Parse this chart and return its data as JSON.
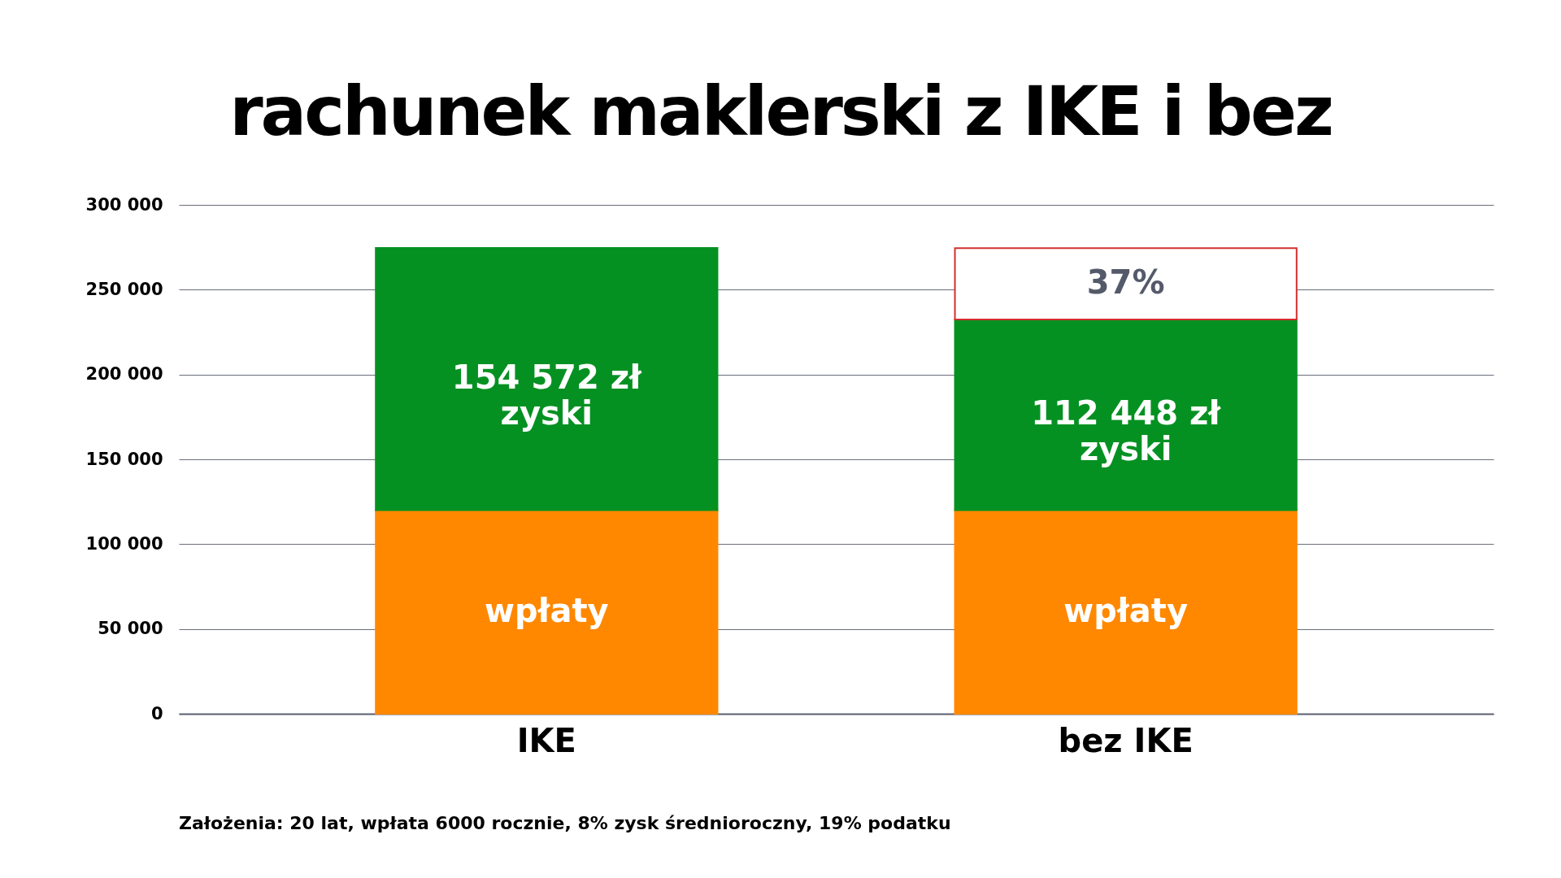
{
  "chart_data": {
    "type": "bar",
    "title": "rachunek maklerski z IKE i bez",
    "categories": [
      "IKE",
      "bez IKE"
    ],
    "stacked": true,
    "series": [
      {
        "name": "wpłaty",
        "color": "#ff8800",
        "values": [
          120000,
          120000
        ]
      },
      {
        "name": "zyski",
        "color": "#059122",
        "values": [
          154572,
          112448
        ],
        "value_labels": [
          "154 572 zł",
          "112 448 zł"
        ]
      },
      {
        "color": "#ffffff",
        "values": [
          null,
          42000
        ]
      }
    ],
    "ylim": [
      0,
      300000
    ],
    "yticks": [
      {
        "value": 0,
        "label": "0"
      },
      {
        "value": 50000,
        "label": "50 000"
      },
      {
        "value": 100000,
        "label": "100 000"
      },
      {
        "value": 150000,
        "label": "150 000"
      },
      {
        "value": 200000,
        "label": "200 000"
      },
      {
        "value": 250000,
        "label": "250 000"
      },
      {
        "value": 300000,
        "label": "300 000"
      }
    ],
    "grid": "y",
    "annotations": [
      "37%",
      "Założenia: 20 lat, wpłata 6000 rocznie, 8% zysk średnioroczny, 19% podatku"
    ]
  }
}
